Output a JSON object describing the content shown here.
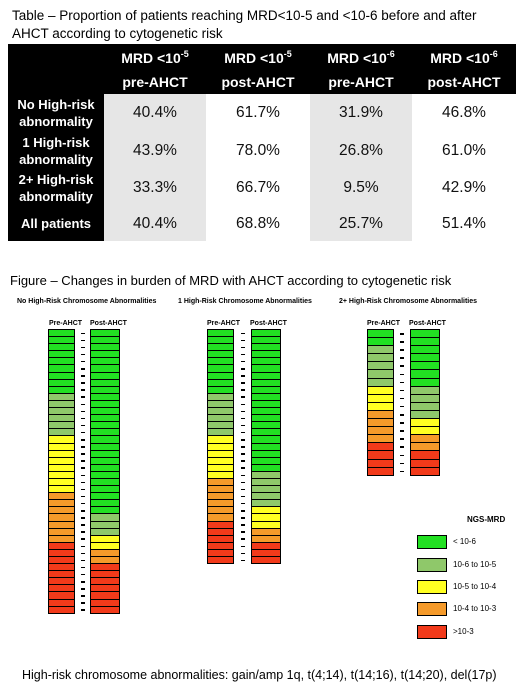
{
  "table": {
    "title": "Table – Proportion of patients reaching MRD<10-5 and <10-6 before and after AHCT according to cytogenetic risk",
    "headers": [
      {
        "base": "MRD <10",
        "exp": "-5",
        "sub": "pre-AHCT"
      },
      {
        "base": "MRD <10",
        "exp": "-5",
        "sub": "post-AHCT"
      },
      {
        "base": "MRD <10",
        "exp": "-6",
        "sub": "pre-AHCT"
      },
      {
        "base": "MRD <10",
        "exp": "-6",
        "sub": "post-AHCT"
      }
    ],
    "rows": [
      {
        "label": "No High-risk abnormality",
        "values": [
          "40.4%",
          "61.7%",
          "31.9%",
          "46.8%"
        ]
      },
      {
        "label": "1 High-risk abnormality",
        "values": [
          "43.9%",
          "78.0%",
          "26.8%",
          "61.0%"
        ]
      },
      {
        "label": "2+ High-risk abnormality",
        "values": [
          "33.3%",
          "66.7%",
          "9.5%",
          "42.9%"
        ]
      },
      {
        "label": "All patients",
        "values": [
          "40.4%",
          "68.8%",
          "25.7%",
          "51.4%"
        ]
      }
    ]
  },
  "figure": {
    "title": "Figure – Changes in burden of MRD with AHCT according to cytogenetic risk",
    "col_pre": "Pre-AHCT",
    "col_post": "Post-AHCT",
    "panels": [
      {
        "title": "No High-Risk Chromosome Abnormalities",
        "pre": {
          "green": 9,
          "lightgreen": 6,
          "yellow": 8,
          "orange": 7,
          "red": 10
        },
        "post": {
          "green": 26,
          "lightgreen": 3,
          "yellow": 2,
          "orange": 2,
          "red": 7
        }
      },
      {
        "title": "1 High-Risk Chromosome Abnormalities",
        "pre": {
          "green": 9,
          "lightgreen": 6,
          "yellow": 6,
          "orange": 6,
          "red": 6
        },
        "post": {
          "green": 20,
          "lightgreen": 5,
          "yellow": 3,
          "orange": 2,
          "red": 3
        }
      },
      {
        "title": "2+ High-Risk Chromosome Abnormalities",
        "pre": {
          "green": 2,
          "lightgreen": 5,
          "yellow": 3,
          "orange": 4,
          "red": 4
        },
        "post": {
          "green": 7,
          "lightgreen": 4,
          "yellow": 2,
          "orange": 2,
          "red": 3
        }
      }
    ]
  },
  "legend": {
    "title": "NGS-MRD",
    "items": [
      {
        "label": "< 10-6",
        "color": "#22e022"
      },
      {
        "label": "10-6 to 10-5",
        "color": "#8fc86a"
      },
      {
        "label": "10-5 to 10-4",
        "color": "#ffff22"
      },
      {
        "label": "10-4 to 10-3",
        "color": "#f59a2a"
      },
      {
        "label": ">10-3",
        "color": "#f23a1a"
      }
    ]
  },
  "footnote": "High-risk chromosome abnormalities: gain/amp 1q, t(4;14), t(14;16), t(14;20), del(17p)"
}
